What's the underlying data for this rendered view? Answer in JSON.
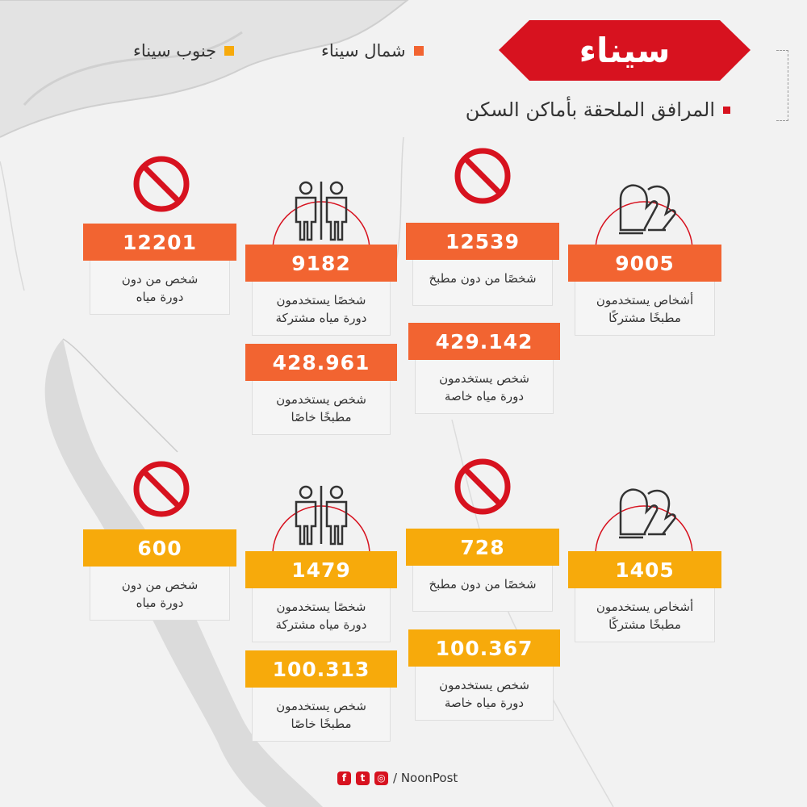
{
  "title": "سيناء",
  "subtitle": "المرافق الملحقة بأماكن السكن",
  "legend": {
    "north": "شمال سيناء",
    "south": "جنوب سيناء"
  },
  "colors": {
    "north": "#f26431",
    "south": "#f7aa0b",
    "accent": "#d7121f"
  },
  "north": {
    "no_toilet": {
      "value": "12201",
      "label_1": "شخص من دون",
      "label_2": "دورة مياه"
    },
    "shared_toilet": {
      "value": "9182",
      "label_1": "شخصًا يستخدمون",
      "label_2": "دورة مياه مشتركة"
    },
    "private_kitchen": {
      "value": "428.961",
      "label_1": "شخص يستخدمون",
      "label_2": "مطبخًا خاصًا"
    },
    "no_kitchen": {
      "value": "12539",
      "label_1": "شخصًا من دون مطبخ"
    },
    "private_toilet": {
      "value": "429.142",
      "label_1": "شخص يستخدمون",
      "label_2": "دورة مياه خاصة"
    },
    "shared_kitchen": {
      "value": "9005",
      "label_1": "أشخاص يستخدمون",
      "label_2": "مطبخًا مشتركًا"
    }
  },
  "south": {
    "no_toilet": {
      "value": "600",
      "label_1": "شخص من دون",
      "label_2": "دورة مياه"
    },
    "shared_toilet": {
      "value": "1479",
      "label_1": "شخصًا يستخدمون",
      "label_2": "دورة مياه مشتركة"
    },
    "private_kitchen": {
      "value": "100.313",
      "label_1": "شخص يستخدمون",
      "label_2": "مطبخًا خاصًا"
    },
    "no_kitchen": {
      "value": "728",
      "label_1": "شخصًا من دون مطبخ"
    },
    "private_toilet": {
      "value": "100.367",
      "label_1": "شخص يستخدمون",
      "label_2": "دورة مياه خاصة"
    },
    "shared_kitchen": {
      "value": "1405",
      "label_1": "أشخاص يستخدمون",
      "label_2": "مطبخًا مشتركًا"
    }
  },
  "footer": {
    "brand": "/ NoonPost",
    "icons": [
      "facebook-icon",
      "twitter-icon",
      "instagram-icon"
    ]
  }
}
